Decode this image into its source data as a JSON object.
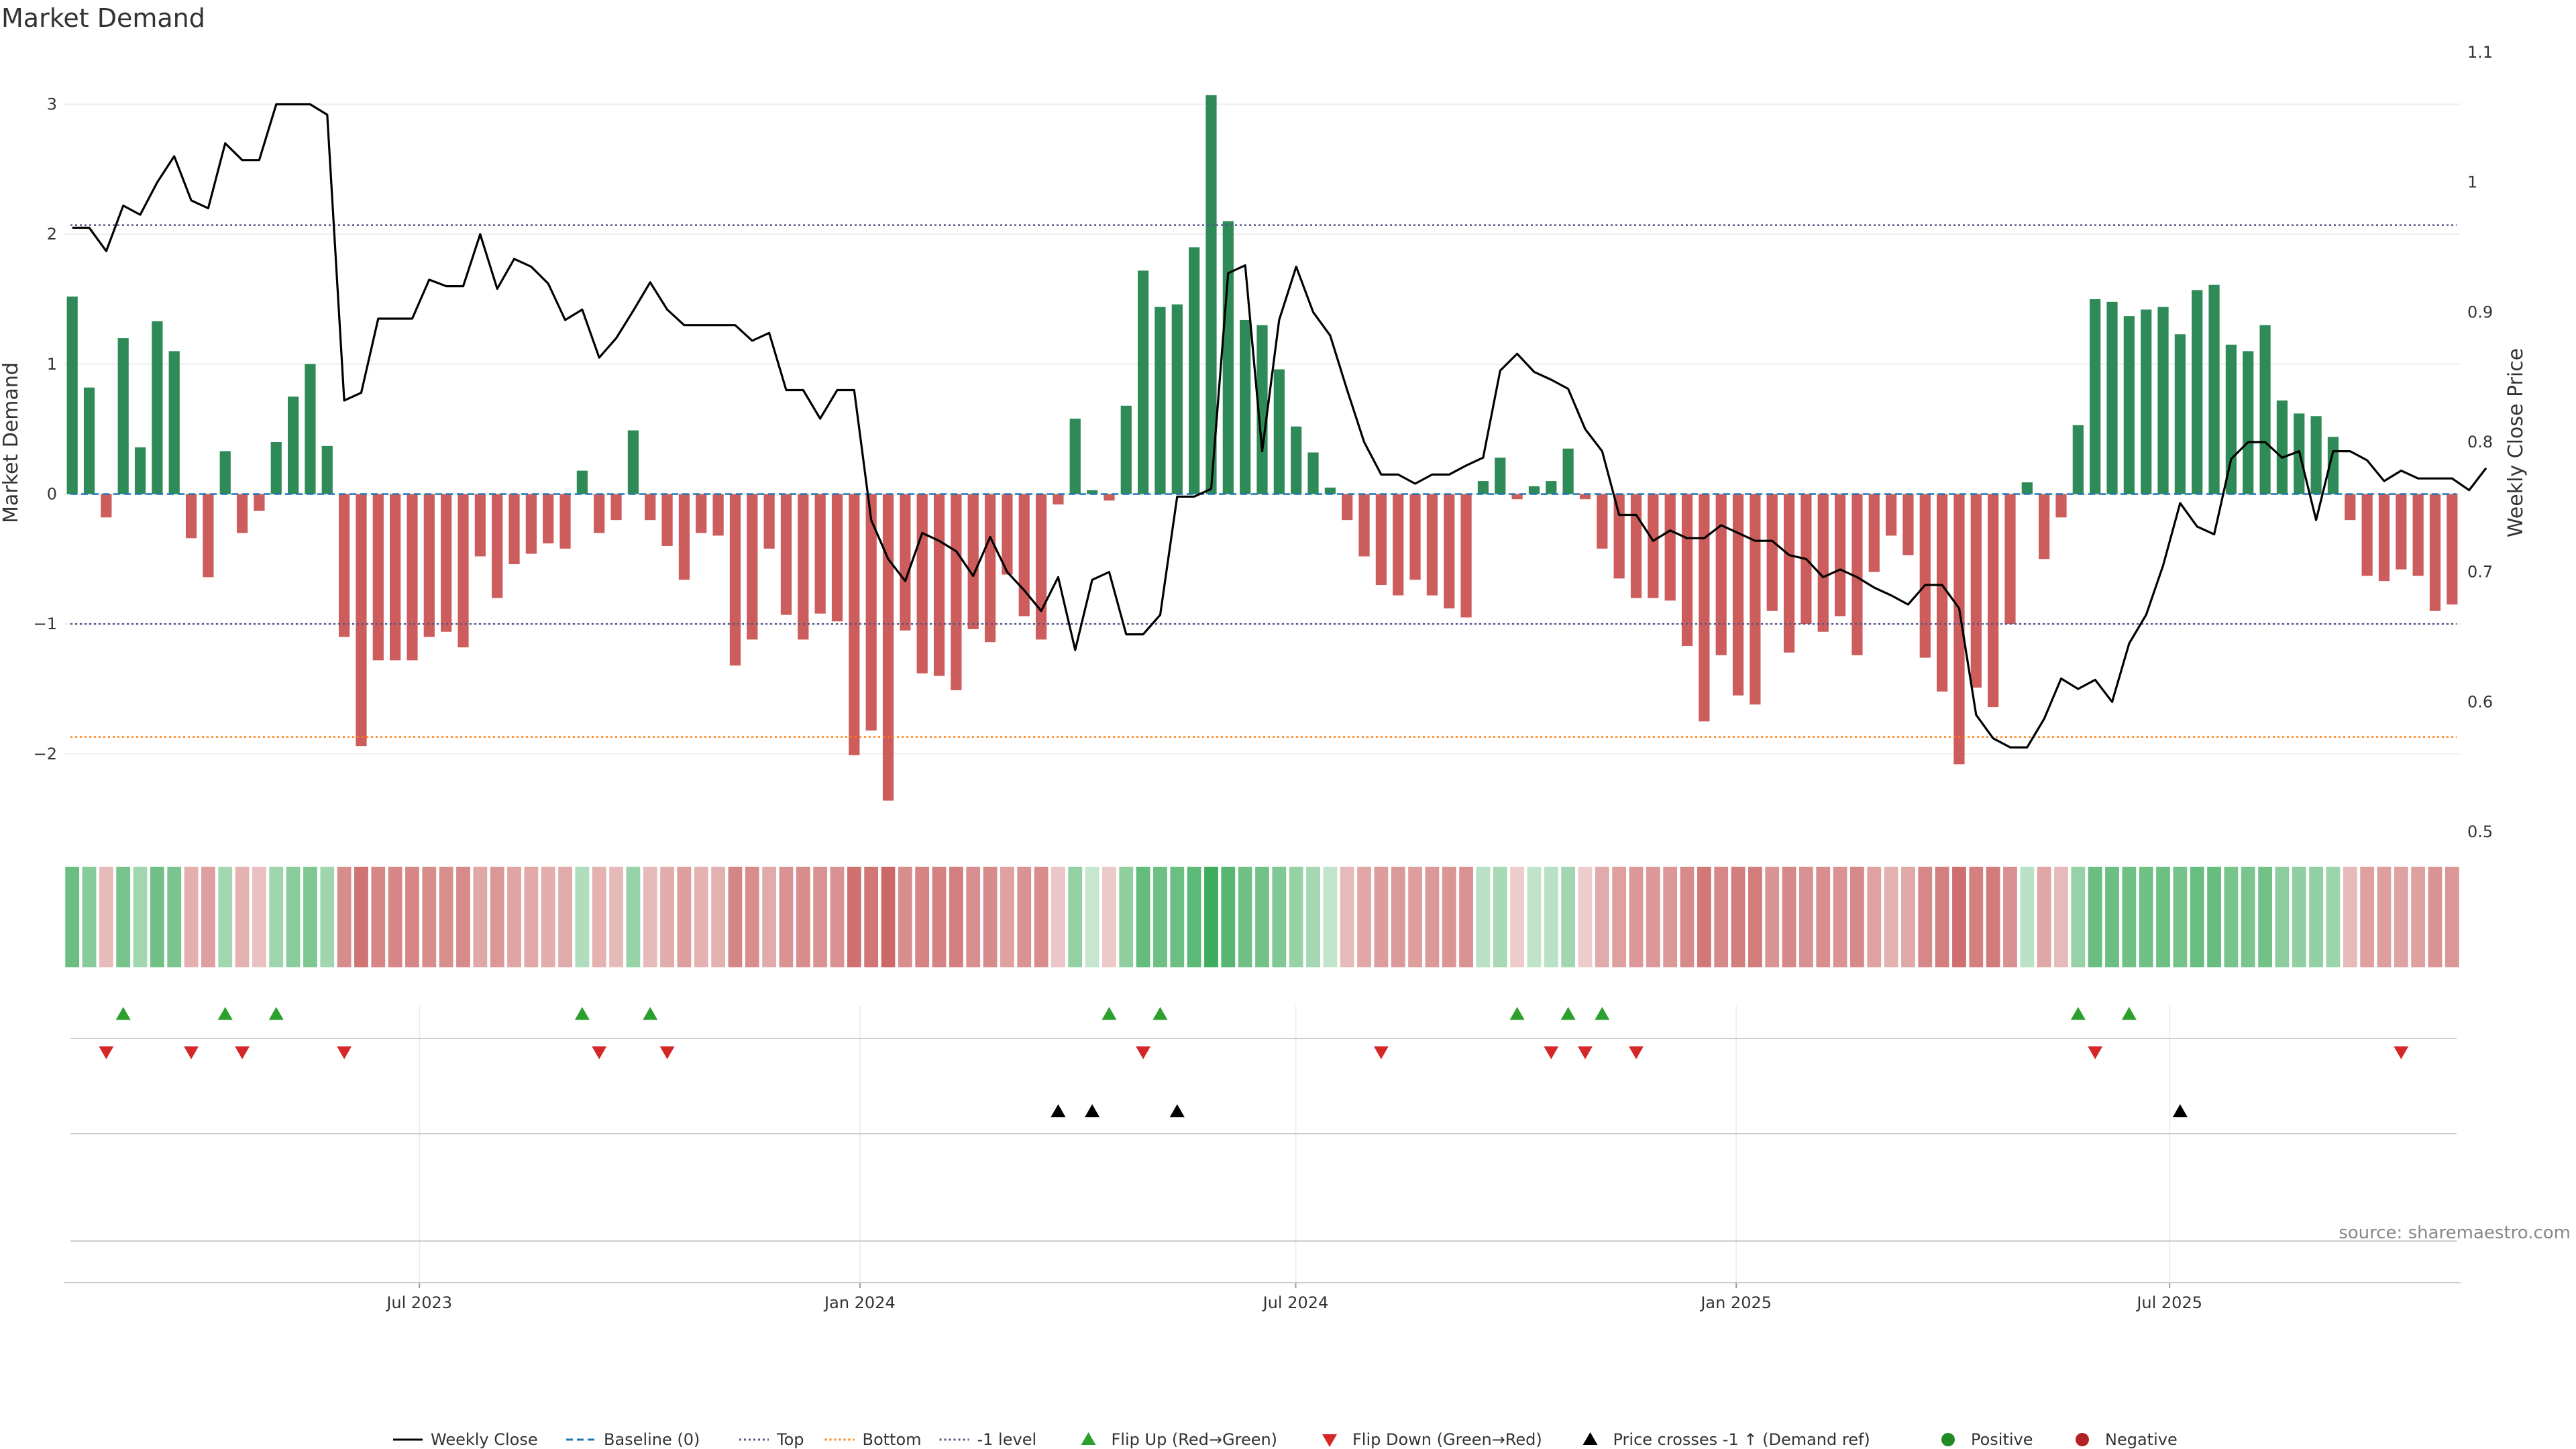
{
  "chart_data": {
    "type": "bar",
    "title": "Market Demand",
    "ylabel": "Market Demand",
    "y2label": "Weekly Close Price",
    "ylim": [
      -2.6,
      3.4
    ],
    "y2lim": [
      0.5,
      1.1
    ],
    "yticks": [
      -2,
      -1,
      0,
      1,
      2,
      3
    ],
    "ytick_labels": [
      "−2",
      "−1",
      "0",
      "1",
      "2",
      "3"
    ],
    "y2ticks": [
      0.5,
      0.6,
      0.7,
      0.8,
      0.9,
      1.0,
      1.1
    ],
    "y2tick_labels": [
      "0.5",
      "0.6",
      "0.7",
      "0.8",
      "0.9",
      "1",
      "1.1"
    ],
    "x_start": "2023-02-06",
    "x_end": "2025-10-27",
    "xticks": [
      {
        "date": "2023-07-01",
        "label": "Jul 2023"
      },
      {
        "date": "2024-01-01",
        "label": "Jan 2024"
      },
      {
        "date": "2024-07-01",
        "label": "Jul 2024"
      },
      {
        "date": "2025-01-01",
        "label": "Jan 2025"
      },
      {
        "date": "2025-07-01",
        "label": "Jul 2025"
      }
    ],
    "grid": true,
    "legend_position": "bottom-center",
    "levels": {
      "baseline": 0,
      "top": 2.07,
      "bottom": -1.87,
      "minus_one": -1
    },
    "series": [
      {
        "name": "Market Demand",
        "kind": "bar",
        "values": [
          1.52,
          0.82,
          -0.18,
          1.2,
          0.36,
          1.33,
          1.1,
          -0.34,
          -0.64,
          0.33,
          -0.3,
          -0.13,
          0.4,
          0.75,
          1.0,
          0.37,
          -1.1,
          -1.94,
          -1.28,
          -1.28,
          -1.28,
          -1.1,
          -1.06,
          -1.18,
          -0.48,
          -0.8,
          -0.54,
          -0.46,
          -0.38,
          -0.42,
          0.18,
          -0.3,
          -0.2,
          0.49,
          -0.2,
          -0.4,
          -0.66,
          -0.3,
          -0.32,
          -1.32,
          -1.12,
          -0.42,
          -0.93,
          -1.12,
          -0.92,
          -0.98,
          -2.01,
          -1.82,
          -2.36,
          -1.05,
          -1.38,
          -1.4,
          -1.51,
          -1.04,
          -1.14,
          -0.62,
          -0.94,
          -1.12,
          -0.08,
          0.58,
          0.03,
          -0.05,
          0.68,
          1.72,
          1.44,
          1.46,
          1.9,
          3.07,
          2.1,
          1.34,
          1.3,
          0.96,
          0.52,
          0.32,
          0.05,
          -0.2,
          -0.48,
          -0.7,
          -0.78,
          -0.66,
          -0.78,
          -0.88,
          -0.95,
          0.1,
          0.28,
          -0.04,
          0.06,
          0.1,
          0.35,
          -0.04,
          -0.42,
          -0.65,
          -0.8,
          -0.8,
          -0.82,
          -1.17,
          -1.75,
          -1.24,
          -1.55,
          -1.62,
          -0.9,
          -1.22,
          -1.0,
          -1.06,
          -0.94,
          -1.24,
          -0.6,
          -0.32,
          -0.47,
          -1.26,
          -1.52,
          -2.08,
          -1.49,
          -1.64,
          -1.0,
          0.09,
          -0.5,
          -0.18,
          0.53,
          1.5,
          1.48,
          1.37,
          1.42,
          1.44,
          1.23,
          1.57,
          1.61,
          1.15,
          1.1,
          1.3,
          0.72,
          0.62,
          0.6,
          0.44,
          -0.2,
          -0.63,
          -0.67,
          -0.58,
          -0.63,
          -0.9,
          -0.85
        ]
      },
      {
        "name": "Weekly Close",
        "kind": "line",
        "axis": "y2",
        "values": [
          0.965,
          0.965,
          0.947,
          0.982,
          0.975,
          1.0,
          1.02,
          0.986,
          0.98,
          1.03,
          1.017,
          1.017,
          1.06,
          1.06,
          1.06,
          1.052,
          0.832,
          0.838,
          0.895,
          0.895,
          0.895,
          0.925,
          0.92,
          0.92,
          0.96,
          0.918,
          0.941,
          0.935,
          0.922,
          0.894,
          0.902,
          0.865,
          0.88,
          0.901,
          0.923,
          0.902,
          0.89,
          0.89,
          0.89,
          0.89,
          0.878,
          0.884,
          0.84,
          0.84,
          0.818,
          0.84,
          0.84,
          0.74,
          0.71,
          0.693,
          0.73,
          0.724,
          0.716,
          0.697,
          0.727,
          0.7,
          0.686,
          0.67,
          0.696,
          0.64,
          0.694,
          0.7,
          0.652,
          0.652,
          0.667,
          0.758,
          0.758,
          0.764,
          0.93,
          0.936,
          0.793,
          0.894,
          0.935,
          0.9,
          0.882,
          0.84,
          0.8,
          0.775,
          0.775,
          0.768,
          0.775,
          0.775,
          0.782,
          0.788,
          0.855,
          0.868,
          0.854,
          0.848,
          0.841,
          0.81,
          0.793,
          0.744,
          0.744,
          0.724,
          0.732,
          0.726,
          0.726,
          0.736,
          0.73,
          0.724,
          0.724,
          0.713,
          0.71,
          0.696,
          0.702,
          0.696,
          0.688,
          0.682,
          0.675,
          0.69,
          0.69,
          0.672,
          0.59,
          0.572,
          0.565,
          0.565,
          0.587,
          0.618,
          0.61,
          0.617,
          0.6,
          0.645,
          0.667,
          0.705,
          0.753,
          0.735,
          0.729,
          0.787,
          0.8,
          0.8,
          0.788,
          0.793,
          0.74,
          0.793,
          0.793,
          0.786,
          0.77,
          0.778,
          0.772,
          0.772,
          0.772,
          0.763,
          0.78
        ]
      }
    ],
    "flip_up_idx": [
      3,
      9,
      12,
      30,
      34,
      61,
      64,
      85,
      88,
      90,
      118,
      121
    ],
    "flip_down_idx": [
      2,
      7,
      10,
      16,
      31,
      35,
      63,
      77,
      87,
      89,
      92,
      119,
      137
    ],
    "price_cross_idx": [
      58,
      60,
      65,
      124
    ],
    "colors": {
      "positive": "#2e8b57",
      "negative": "#cd5c5c",
      "price": "#000000",
      "baseline": "#1f77b4",
      "top": "#55558a",
      "bottom": "#ff7f0e",
      "minus_one": "#55558a",
      "flip_up": "#2ca02c",
      "flip_down": "#d62728",
      "cross": "#000000",
      "legend_positive": "#228b22",
      "legend_negative": "#b22222"
    },
    "legend": [
      {
        "label": "Weekly Close",
        "kind": "line",
        "color": "#000000",
        "dash": ""
      },
      {
        "label": "Baseline (0)",
        "kind": "line",
        "color": "#1f77b4",
        "dash": "10,6"
      },
      {
        "label": "Top",
        "kind": "line",
        "color": "#55558a",
        "dash": "3,4"
      },
      {
        "label": "Bottom",
        "kind": "line",
        "color": "#ff7f0e",
        "dash": "3,4"
      },
      {
        "label": "-1 level",
        "kind": "line",
        "color": "#55558a",
        "dash": "3,4"
      },
      {
        "label": "Flip Up (Red→Green)",
        "kind": "tri-up",
        "color": "#2ca02c"
      },
      {
        "label": "Flip Down (Green→Red)",
        "kind": "tri-down",
        "color": "#d62728"
      },
      {
        "label": "Price crosses -1 ↑ (Demand ref)",
        "kind": "tri-up",
        "color": "#000000"
      },
      {
        "label": "Positive",
        "kind": "dot",
        "color": "#228b22"
      },
      {
        "label": "Negative",
        "kind": "dot",
        "color": "#b22222"
      }
    ],
    "source": "source: sharemaestro.com"
  }
}
